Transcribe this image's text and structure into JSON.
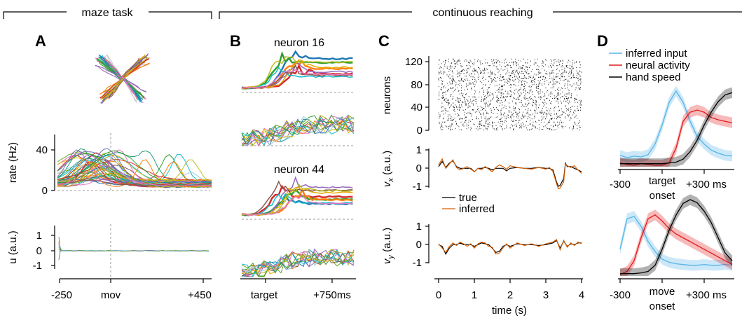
{
  "sections": {
    "maze": "maze task",
    "reaching": "continuous reaching"
  },
  "panels": {
    "A": "A",
    "B": "B",
    "C": "C",
    "D": "D"
  },
  "chart_data": [
    {
      "id": "A_rate",
      "type": "line",
      "ylabel": "rate (Hz)",
      "yticks": [
        "0",
        "40"
      ],
      "ylim": [
        0,
        50
      ],
      "x_events": [
        "-250",
        "mov",
        "+450"
      ],
      "note_series": "approx. 50 condition-averaged neuron firing-rate traces"
    },
    {
      "id": "A_input",
      "type": "line",
      "ylabel": "u (a.u.)",
      "yticks": [
        "1",
        "0",
        "-1"
      ],
      "ylim": [
        -1.4,
        1.4
      ],
      "xticks": [
        "-250",
        "mov",
        "+450"
      ]
    },
    {
      "id": "B",
      "type": "line",
      "titles": [
        "neuron 16",
        "neuron 44"
      ],
      "xticks": [
        "target",
        "+750ms"
      ]
    },
    {
      "id": "C_raster",
      "type": "scatter",
      "ylabel": "neurons",
      "yticks": [
        "120",
        "80",
        "40",
        "0"
      ],
      "ylim": [
        0,
        128
      ]
    },
    {
      "id": "C_vx",
      "type": "line",
      "ylabel": "v_x (a.u.)",
      "ylabel_main": "v",
      "ylabel_sub": "x",
      "ylabel_unit": "(a.u.)",
      "yticks": [
        "1",
        "0",
        "-1"
      ],
      "ylim": [
        -1.3,
        1.2
      ],
      "legend": [
        "true",
        "inferred"
      ],
      "series": [
        {
          "name": "true",
          "color": "#000000",
          "x": [
            0,
            0.1,
            0.2,
            0.3,
            0.4,
            0.5,
            0.6,
            0.7,
            0.8,
            0.9,
            1.0,
            1.1,
            1.2,
            1.3,
            1.4,
            1.5,
            1.6,
            1.7,
            1.8,
            1.9,
            2.0,
            2.2,
            2.4,
            2.6,
            2.8,
            3.0,
            3.1,
            3.2,
            3.3,
            3.35,
            3.4,
            3.5,
            3.55,
            3.6,
            3.7,
            3.8,
            3.9,
            4.0
          ],
          "y": [
            0.1,
            0.4,
            0.05,
            0.3,
            0.45,
            0.1,
            0,
            0,
            0,
            0,
            -0.2,
            0,
            0,
            0.05,
            0,
            -0.1,
            0,
            0,
            0,
            -0.15,
            0,
            0.05,
            0,
            0,
            0.05,
            0,
            0,
            -0.1,
            -0.8,
            -1.05,
            -1.0,
            -0.6,
            0.3,
            0.1,
            0.1,
            0,
            -0.1,
            -0.2
          ]
        },
        {
          "name": "inferred",
          "color": "#d95f02",
          "x": [
            0,
            0.1,
            0.2,
            0.3,
            0.4,
            0.5,
            0.6,
            0.7,
            0.8,
            0.9,
            1.0,
            1.1,
            1.2,
            1.3,
            1.4,
            1.5,
            1.6,
            1.7,
            1.8,
            1.9,
            2.0,
            2.2,
            2.4,
            2.6,
            2.8,
            3.0,
            3.1,
            3.2,
            3.3,
            3.35,
            3.4,
            3.5,
            3.55,
            3.6,
            3.7,
            3.8,
            3.9,
            4.0
          ],
          "y": [
            0.2,
            0.55,
            0,
            0.25,
            0.5,
            0.05,
            -0.1,
            0,
            0.1,
            -0.05,
            -0.2,
            0,
            -0.1,
            0.1,
            -0.05,
            -0.2,
            0.05,
            0.2,
            0.1,
            -0.05,
            0.15,
            0.05,
            0,
            -0.05,
            0.05,
            -0.05,
            0.05,
            -0.2,
            -0.9,
            -1.2,
            -1.15,
            -0.8,
            0.25,
            0.15,
            0.05,
            0.15,
            -0.1,
            -0.3
          ]
        }
      ]
    },
    {
      "id": "C_vy",
      "type": "line",
      "ylabel": "v_y (a.u.)",
      "ylabel_main": "v",
      "ylabel_sub": "y",
      "ylabel_unit": "(a.u.)",
      "yticks": [
        "1",
        "0",
        "-1"
      ],
      "xticks": [
        "0",
        "1",
        "2",
        "3",
        "4"
      ],
      "xlabel": "time (s)",
      "xlim": [
        0,
        4
      ],
      "ylim": [
        -1.3,
        1.2
      ],
      "series": [
        {
          "name": "true",
          "color": "#000000",
          "x": [
            0,
            0.1,
            0.2,
            0.3,
            0.4,
            0.5,
            0.6,
            0.7,
            0.8,
            0.9,
            1.0,
            1.1,
            1.2,
            1.3,
            1.4,
            1.5,
            1.6,
            1.7,
            1.8,
            1.9,
            2.0,
            2.2,
            2.4,
            2.6,
            2.8,
            3.0,
            3.2,
            3.3,
            3.4,
            3.5,
            3.6,
            3.7,
            3.8,
            3.9,
            4.0
          ],
          "y": [
            0,
            -0.1,
            -0.55,
            -0.2,
            0,
            0,
            0.1,
            0,
            0,
            0,
            -0.1,
            0,
            0.1,
            0.05,
            0,
            -0.2,
            -0.45,
            -0.4,
            -0.1,
            0,
            -0.1,
            0.05,
            0,
            0,
            -0.05,
            0,
            0.1,
            0.25,
            -0.2,
            0.2,
            -0.1,
            0.05,
            0,
            0.1,
            0.1
          ]
        },
        {
          "name": "inferred",
          "color": "#d95f02",
          "x": [
            0,
            0.1,
            0.2,
            0.3,
            0.4,
            0.5,
            0.6,
            0.7,
            0.8,
            0.9,
            1.0,
            1.1,
            1.2,
            1.3,
            1.4,
            1.5,
            1.6,
            1.7,
            1.8,
            1.9,
            2.0,
            2.2,
            2.4,
            2.6,
            2.8,
            3.0,
            3.2,
            3.3,
            3.4,
            3.5,
            3.6,
            3.7,
            3.8,
            3.9,
            4.0
          ],
          "y": [
            0.05,
            -0.2,
            -0.45,
            -0.1,
            0.1,
            -0.05,
            0.15,
            0.05,
            -0.1,
            0.05,
            -0.2,
            0.05,
            0.15,
            0.1,
            -0.1,
            -0.15,
            -0.55,
            -0.5,
            -0.2,
            0.05,
            -0.2,
            0.1,
            -0.05,
            0.05,
            -0.1,
            0.05,
            0.15,
            0.3,
            -0.3,
            0.25,
            -0.15,
            0.1,
            -0.05,
            0.15,
            0.05
          ]
        }
      ]
    },
    {
      "id": "D_target",
      "type": "line",
      "xticks": [
        "-300",
        "+300 ms"
      ],
      "xlabel": [
        "target",
        "onset"
      ],
      "xlim": [
        -300,
        500
      ],
      "legend": [
        "inferred input",
        "neural activity",
        "hand speed"
      ],
      "series": [
        {
          "name": "inferred input",
          "color": "#56b4e9",
          "x": [
            -300,
            -250,
            -200,
            -150,
            -100,
            -50,
            0,
            50,
            100,
            150,
            200,
            250,
            300,
            350,
            400,
            450,
            500
          ],
          "y": [
            0.15,
            0.12,
            0.14,
            0.13,
            0.16,
            0.3,
            0.55,
            0.85,
            1.0,
            0.85,
            0.6,
            0.4,
            0.3,
            0.22,
            0.18,
            0.15,
            0.14
          ]
        },
        {
          "name": "neural activity",
          "color": "#e31a1c",
          "x": [
            -300,
            -250,
            -200,
            -150,
            -100,
            -50,
            0,
            50,
            100,
            150,
            200,
            250,
            300,
            350,
            400,
            450,
            500
          ],
          "y": [
            0.05,
            0.03,
            0.02,
            0.04,
            0.03,
            0.02,
            0.02,
            0.05,
            0.25,
            0.6,
            0.72,
            0.75,
            0.72,
            0.65,
            0.62,
            0.6,
            0.58
          ]
        },
        {
          "name": "hand speed",
          "color": "#000000",
          "x": [
            -300,
            -250,
            -200,
            -150,
            -100,
            -50,
            0,
            50,
            100,
            150,
            200,
            250,
            300,
            350,
            400,
            450,
            500
          ],
          "y": [
            0.04,
            0.04,
            0.04,
            0.04,
            0.04,
            0.04,
            0.04,
            0.05,
            0.06,
            0.1,
            0.2,
            0.35,
            0.55,
            0.72,
            0.86,
            0.95,
            0.98
          ]
        }
      ]
    },
    {
      "id": "D_move",
      "type": "line",
      "xticks": [
        "-300",
        "+300 ms"
      ],
      "xlabel": [
        "move",
        "onset"
      ],
      "xlim": [
        -300,
        500
      ],
      "series": [
        {
          "name": "inferred input",
          "color": "#56b4e9",
          "x": [
            -300,
            -250,
            -200,
            -150,
            -100,
            -50,
            0,
            50,
            100,
            150,
            200,
            250,
            300,
            350,
            400,
            450,
            500
          ],
          "y": [
            0.35,
            0.75,
            0.78,
            0.65,
            0.45,
            0.32,
            0.22,
            0.18,
            0.16,
            0.15,
            0.14,
            0.14,
            0.15,
            0.14,
            0.14,
            0.15,
            0.14
          ]
        },
        {
          "name": "neural activity",
          "color": "#e31a1c",
          "x": [
            -300,
            -250,
            -200,
            -150,
            -100,
            -50,
            0,
            50,
            100,
            150,
            200,
            250,
            300,
            350,
            400,
            450,
            500
          ],
          "y": [
            0.02,
            0.06,
            0.2,
            0.5,
            0.75,
            0.8,
            0.72,
            0.62,
            0.55,
            0.5,
            0.45,
            0.4,
            0.35,
            0.3,
            0.25,
            0.2,
            0.15
          ]
        },
        {
          "name": "hand speed",
          "color": "#000000",
          "x": [
            -300,
            -250,
            -200,
            -150,
            -100,
            -50,
            0,
            50,
            100,
            150,
            200,
            250,
            300,
            350,
            400,
            450,
            500
          ],
          "y": [
            0.03,
            0.03,
            0.03,
            0.04,
            0.06,
            0.14,
            0.35,
            0.6,
            0.8,
            0.95,
            1.0,
            0.96,
            0.85,
            0.7,
            0.5,
            0.3,
            0.2
          ]
        }
      ]
    }
  ]
}
